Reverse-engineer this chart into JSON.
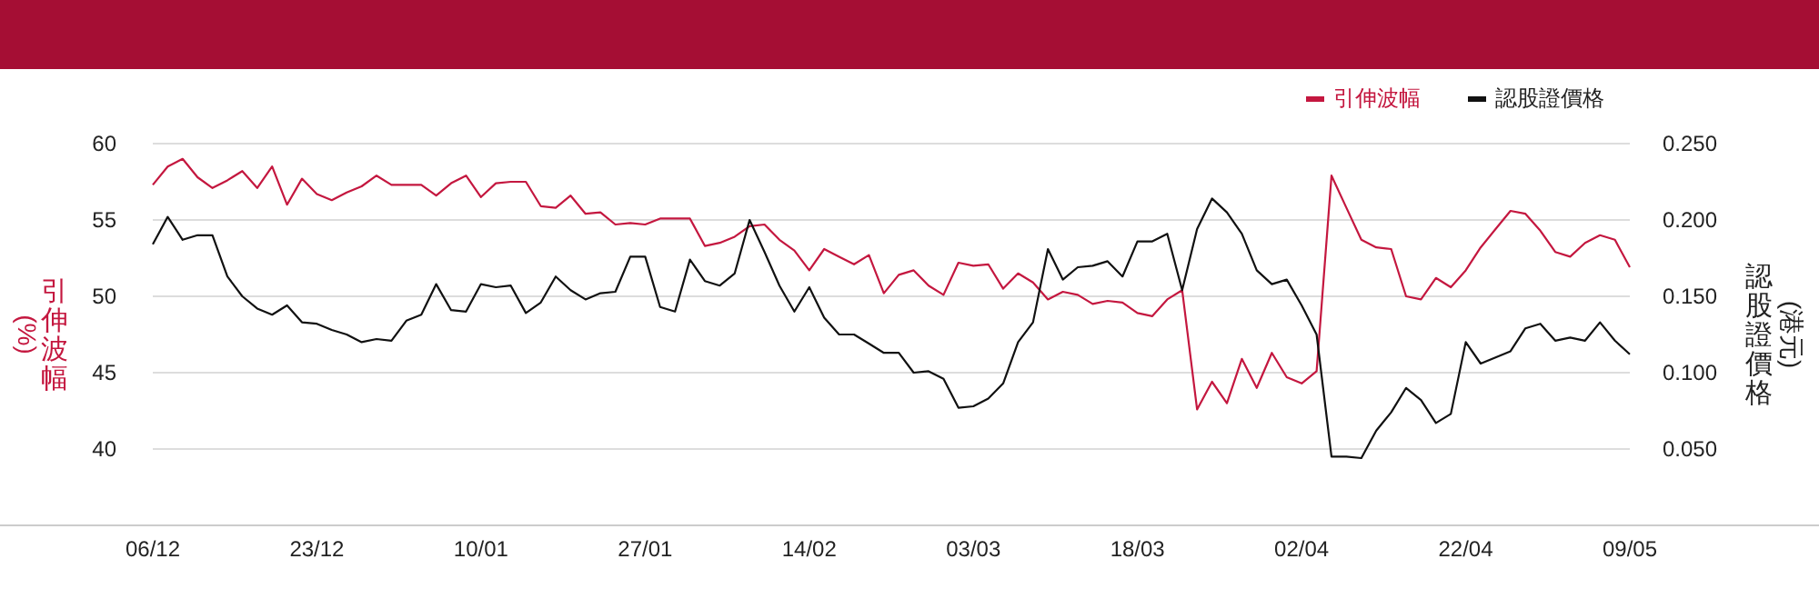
{
  "chart_data": {
    "type": "line",
    "ylabel": "引伸波幅(%)",
    "y2label": "認股證價格(港元)",
    "categories": [
      "06/12",
      null,
      null,
      null,
      null,
      null,
      null,
      null,
      null,
      null,
      null,
      "23/12",
      null,
      null,
      null,
      null,
      null,
      null,
      null,
      null,
      null,
      null,
      "10/01",
      null,
      null,
      null,
      null,
      null,
      null,
      null,
      null,
      null,
      null,
      "27/01",
      null,
      null,
      null,
      null,
      null,
      null,
      null,
      null,
      null,
      null,
      "14/02",
      null,
      null,
      null,
      null,
      null,
      null,
      null,
      null,
      null,
      null,
      "03/03",
      null,
      null,
      null,
      null,
      null,
      null,
      null,
      null,
      null,
      null,
      "18/03",
      null,
      null,
      null,
      null,
      null,
      null,
      null,
      null,
      null,
      null,
      "02/04",
      null,
      null,
      null,
      null,
      null,
      null,
      null,
      null,
      null,
      null,
      "22/04",
      null,
      null,
      null,
      null,
      null,
      null,
      null,
      null,
      null,
      null,
      "09/05"
    ],
    "series": [
      {
        "name": "引伸波幅",
        "color": "#c4173f",
        "axis": "y",
        "values": [
          57.3,
          58.5,
          59.0,
          57.8,
          57.1,
          57.6,
          58.2,
          57.1,
          58.5,
          56.0,
          57.7,
          56.7,
          56.3,
          56.8,
          57.2,
          57.9,
          57.3,
          57.3,
          57.3,
          56.6,
          57.4,
          57.9,
          56.5,
          57.4,
          57.5,
          57.5,
          55.9,
          55.8,
          56.6,
          55.4,
          55.5,
          54.7,
          54.8,
          54.7,
          55.1,
          55.1,
          55.1,
          53.3,
          53.5,
          53.9,
          54.6,
          54.7,
          53.7,
          53.0,
          51.7,
          53.1,
          52.6,
          52.1,
          52.7,
          50.2,
          51.4,
          51.7,
          50.7,
          50.1,
          52.2,
          52.0,
          52.1,
          50.5,
          51.5,
          50.9,
          49.8,
          50.3,
          50.1,
          49.5,
          49.7,
          49.6,
          48.9,
          48.7,
          49.8,
          50.4,
          42.6,
          44.4,
          43.0,
          45.9,
          44.0,
          46.3,
          44.7,
          44.3,
          45.1,
          57.9,
          55.8,
          53.7,
          53.2,
          53.1,
          50.0,
          49.8,
          51.2,
          50.6,
          51.7,
          53.2,
          54.4,
          55.6,
          55.4,
          54.3,
          52.9,
          52.6,
          53.5,
          54.0,
          53.7,
          51.9
        ]
      },
      {
        "name": "認股證價格",
        "color": "#111111",
        "axis": "y2",
        "values": [
          0.184,
          0.202,
          0.187,
          0.19,
          0.19,
          0.163,
          0.15,
          0.142,
          0.138,
          0.144,
          0.133,
          0.132,
          0.128,
          0.125,
          0.12,
          0.122,
          0.121,
          0.134,
          0.138,
          0.158,
          0.141,
          0.14,
          0.158,
          0.156,
          0.157,
          0.139,
          0.146,
          0.163,
          0.154,
          0.148,
          0.152,
          0.153,
          0.176,
          0.176,
          0.143,
          0.14,
          0.174,
          0.16,
          0.157,
          0.165,
          0.2,
          0.179,
          0.157,
          0.14,
          0.156,
          0.136,
          0.125,
          0.125,
          0.119,
          0.113,
          0.113,
          0.1,
          0.101,
          0.096,
          0.077,
          0.078,
          0.083,
          0.093,
          0.12,
          0.133,
          0.181,
          0.161,
          0.169,
          0.17,
          0.173,
          0.163,
          0.186,
          0.186,
          0.191,
          0.154,
          0.194,
          0.214,
          0.205,
          0.191,
          0.167,
          0.158,
          0.161,
          0.144,
          0.125,
          0.045,
          0.045,
          0.044,
          0.062,
          0.074,
          0.09,
          0.082,
          0.067,
          0.073,
          0.12,
          0.106,
          0.11,
          0.114,
          0.129,
          0.132,
          0.121,
          0.123,
          0.121,
          0.133,
          0.121,
          0.112
        ]
      }
    ],
    "ylim": [
      35,
      60
    ],
    "yticks": [
      40,
      45,
      50,
      55,
      60
    ],
    "y2lim": [
      0,
      0.25
    ],
    "y2ticks": [
      {
        "value": 0.05,
        "label": "0.050"
      },
      {
        "value": 0.1,
        "label": "0.100"
      },
      {
        "value": 0.15,
        "label": "0.150"
      },
      {
        "value": 0.2,
        "label": "0.200"
      },
      {
        "value": 0.25,
        "label": "0.250"
      }
    ],
    "grid": "y",
    "legend": "top right"
  }
}
